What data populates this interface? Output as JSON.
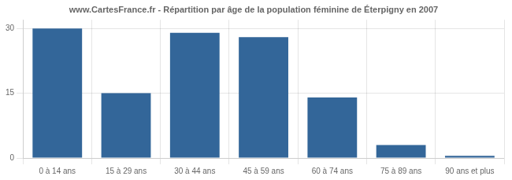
{
  "chart_data": {
    "type": "bar",
    "title": "www.CartesFrance.fr - Répartition par âge de la population féminine de Éterpigny en 2007",
    "categories": [
      "0 à 14 ans",
      "15 à 29 ans",
      "30 à 44 ans",
      "45 à 59 ans",
      "60 à 74 ans",
      "75 à 89 ans",
      "90 ans et plus"
    ],
    "values": [
      30,
      15,
      29,
      28,
      14,
      3,
      0.5
    ],
    "color": "#336699",
    "ylim": [
      0,
      32
    ],
    "yticks": [
      0,
      15,
      30
    ],
    "grid": true
  }
}
